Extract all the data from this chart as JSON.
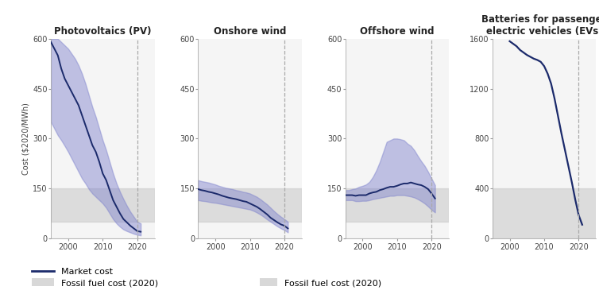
{
  "bg_color": "#ffffff",
  "panel_bg": "#f5f5f5",
  "navy": "#1b2a6b",
  "purple_fill": "#7b7fcc",
  "gray_fill": "#c8c8c8",
  "titles": [
    "Photovoltaics (PV)",
    "Onshore wind",
    "Offshore wind",
    "Batteries for passenger\nelectric vehicles (EVs)"
  ],
  "pv_years": [
    1995,
    1996,
    1997,
    1998,
    1999,
    2000,
    2001,
    2002,
    2003,
    2004,
    2005,
    2006,
    2007,
    2008,
    2009,
    2010,
    2011,
    2012,
    2013,
    2014,
    2015,
    2016,
    2017,
    2018,
    2019,
    2020,
    2021
  ],
  "pv_mid": [
    590,
    570,
    550,
    510,
    480,
    460,
    440,
    420,
    400,
    370,
    340,
    310,
    280,
    260,
    230,
    195,
    175,
    145,
    115,
    95,
    75,
    58,
    48,
    38,
    30,
    22,
    20
  ],
  "pv_high": [
    600,
    600,
    600,
    590,
    580,
    570,
    555,
    540,
    520,
    495,
    465,
    430,
    395,
    365,
    330,
    295,
    265,
    230,
    195,
    165,
    140,
    118,
    98,
    80,
    65,
    50,
    45
  ],
  "pv_low": [
    350,
    330,
    310,
    295,
    278,
    260,
    240,
    220,
    200,
    180,
    165,
    148,
    135,
    125,
    115,
    105,
    92,
    75,
    58,
    45,
    35,
    27,
    22,
    18,
    14,
    11,
    9
  ],
  "onshore_years": [
    1995,
    1996,
    1997,
    1998,
    1999,
    2000,
    2001,
    2002,
    2003,
    2004,
    2005,
    2006,
    2007,
    2008,
    2009,
    2010,
    2011,
    2012,
    2013,
    2014,
    2015,
    2016,
    2017,
    2018,
    2019,
    2020,
    2021
  ],
  "onshore_mid": [
    148,
    145,
    143,
    140,
    138,
    135,
    132,
    128,
    125,
    122,
    120,
    118,
    115,
    112,
    110,
    105,
    100,
    95,
    88,
    80,
    72,
    62,
    55,
    48,
    42,
    38,
    30
  ],
  "onshore_high": [
    175,
    172,
    170,
    168,
    165,
    162,
    158,
    155,
    152,
    150,
    148,
    145,
    143,
    140,
    138,
    135,
    130,
    125,
    118,
    110,
    102,
    92,
    82,
    73,
    65,
    58,
    50
  ],
  "onshore_low": [
    115,
    113,
    112,
    110,
    108,
    107,
    105,
    103,
    101,
    99,
    97,
    95,
    93,
    91,
    89,
    87,
    83,
    78,
    72,
    65,
    57,
    50,
    43,
    36,
    30,
    25,
    18
  ],
  "offshore_years": [
    1995,
    1996,
    1997,
    1998,
    1999,
    2000,
    2001,
    2002,
    2003,
    2004,
    2005,
    2006,
    2007,
    2008,
    2009,
    2010,
    2011,
    2012,
    2013,
    2014,
    2015,
    2016,
    2017,
    2018,
    2019,
    2020,
    2021
  ],
  "offshore_mid": [
    130,
    130,
    130,
    128,
    130,
    130,
    130,
    135,
    138,
    140,
    145,
    148,
    152,
    155,
    155,
    158,
    162,
    165,
    165,
    168,
    165,
    162,
    160,
    155,
    148,
    135,
    120
  ],
  "offshore_high": [
    145,
    145,
    148,
    150,
    155,
    158,
    162,
    170,
    185,
    205,
    230,
    260,
    290,
    295,
    300,
    300,
    298,
    295,
    285,
    278,
    265,
    248,
    232,
    218,
    200,
    180,
    160
  ],
  "offshore_low": [
    115,
    115,
    115,
    112,
    112,
    113,
    113,
    115,
    118,
    120,
    122,
    124,
    126,
    128,
    128,
    130,
    130,
    130,
    128,
    126,
    123,
    118,
    112,
    105,
    96,
    86,
    78
  ],
  "ev_years": [
    2000,
    2001,
    2002,
    2003,
    2004,
    2005,
    2006,
    2007,
    2008,
    2009,
    2010,
    2011,
    2012,
    2013,
    2014,
    2015,
    2016,
    2017,
    2018,
    2019,
    2020,
    2021
  ],
  "ev_mid": [
    1580,
    1560,
    1540,
    1510,
    1490,
    1470,
    1455,
    1440,
    1430,
    1415,
    1380,
    1320,
    1240,
    1120,
    980,
    840,
    710,
    580,
    450,
    310,
    185,
    110
  ],
  "ylim_3charts": [
    0,
    600
  ],
  "ylim_ev": [
    0,
    1600
  ],
  "yticks_3charts": [
    0,
    150,
    300,
    450,
    600
  ],
  "yticks_ev": [
    0,
    400,
    800,
    1200,
    1600
  ],
  "fossil_lo_3charts": 50,
  "fossil_hi_3charts": 150,
  "fossil_lo_ev": 0,
  "fossil_hi_ev": 400,
  "dashed_line_year": 2020,
  "xlim": [
    1995,
    2025
  ],
  "ylabel": "Cost ($2020/MWh)",
  "xtick_labels": [
    "2000",
    "2010",
    "2020"
  ],
  "xtick_values": [
    2000,
    2010,
    2020
  ]
}
